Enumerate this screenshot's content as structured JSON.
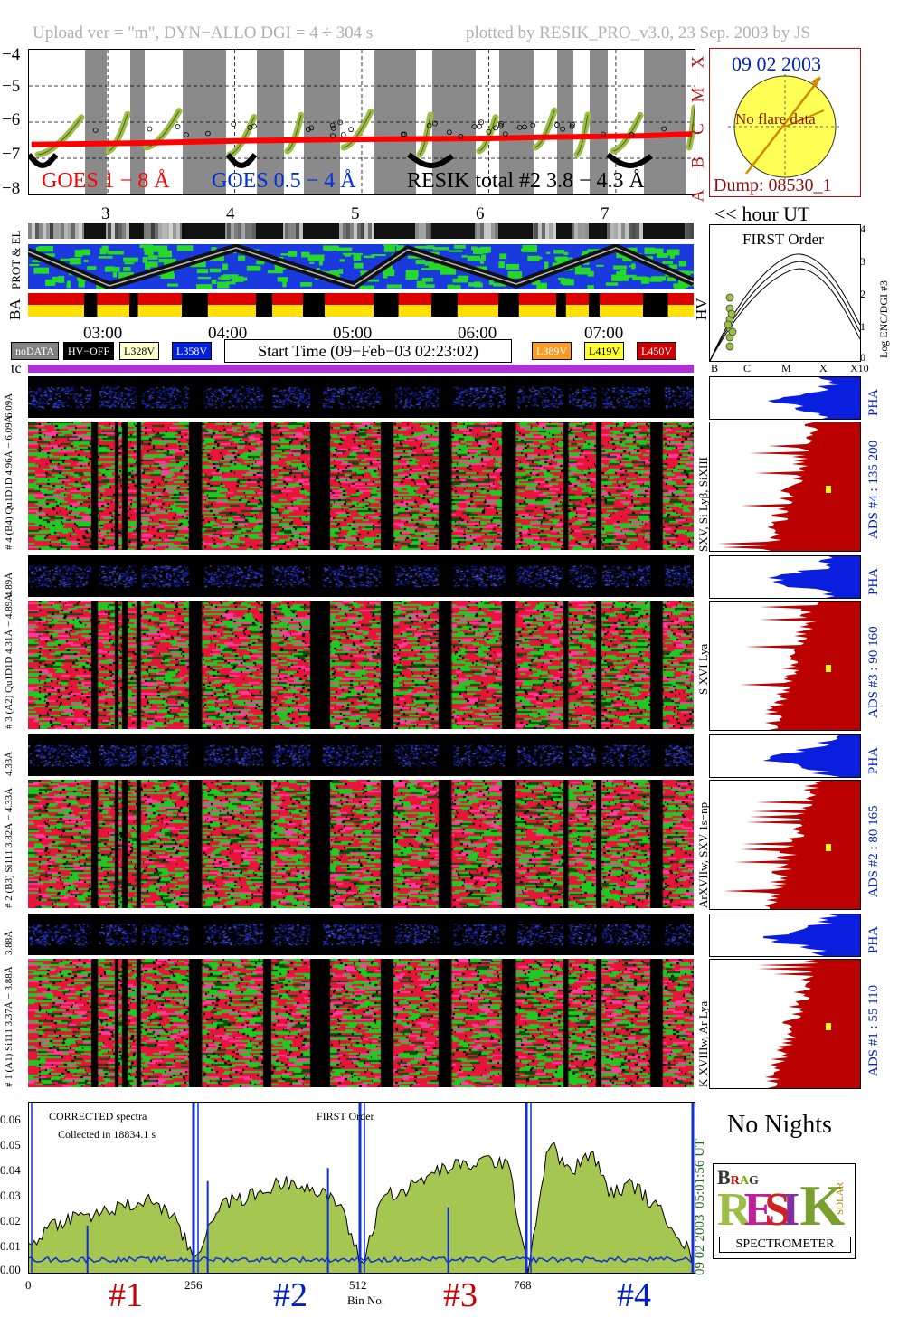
{
  "header": {
    "left": "Upload ver = \"m\", DYN−ALLO DGI =   4 ÷ 304 s",
    "right": "plotted by RESIK_PRO_v3.0, 23 Sep. 2003 by JS"
  },
  "goes_panel": {
    "y_ticks": [
      "−4",
      "−5",
      "−6",
      "−7",
      "−8"
    ],
    "class_labels": [
      "X",
      "M",
      "C",
      "B",
      "A"
    ],
    "legend_goes18": "GOES 1 − 8 Å",
    "legend_goes054": "GOES 0.5 − 4 Å",
    "legend_resik": "RESIK total #2  3.8 − 4.3 Å",
    "hour_ticks": [
      "3",
      "4",
      "5",
      "6",
      "7"
    ],
    "hour_unit": "<< hour UT"
  },
  "sun_box": {
    "date": "09 02 2003",
    "no_flare": "No flare data",
    "dump": "Dump: 08530_1"
  },
  "first_order_box": {
    "title": "FIRST Order",
    "y_label": "Log ENC/DGI #3",
    "y_ticks": [
      "4",
      "3",
      "2",
      "1",
      "0"
    ],
    "x_ticks": [
      "B",
      "C",
      "M",
      "X",
      "X10"
    ]
  },
  "strip_labels": {
    "prot_el": "PROT & EL",
    "ba": "BA",
    "hv": "HV"
  },
  "time_row": {
    "ticks": [
      "03:00",
      "04:00",
      "05:00",
      "06:00",
      "07:00"
    ],
    "start_time": "Start Time (09−Feb−03 02:23:02)",
    "tc": "tc"
  },
  "badges": [
    {
      "label": "noDATA",
      "bg": "#808080",
      "fg": "#ffffff"
    },
    {
      "label": "HV−OFF",
      "bg": "#000000",
      "fg": "#ffffff"
    },
    {
      "label": "L328V",
      "bg": "#ffffcc",
      "fg": "#000000"
    },
    {
      "label": "L358V",
      "bg": "#0020e0",
      "fg": "#ffffff"
    },
    {
      "label": "L389V",
      "bg": "#ff9a20",
      "fg": "#ffffff"
    },
    {
      "label": "L419V",
      "bg": "#ffff30",
      "fg": "#000000"
    },
    {
      "label": "L450V",
      "bg": "#cc0000",
      "fg": "#ffffff"
    }
  ],
  "channels": [
    {
      "left_pha": "6.09Å",
      "left_main": "# 4 (B4) Qu1D1D 4.96Å − 6.09Å",
      "right_line": "SXV, Si Lyβ, SiXIII",
      "ads": "ADS #4 :   135 200",
      "pha": "PHA"
    },
    {
      "left_pha": "4.89Å",
      "left_main": "# 3 (A2) Qu1D1D 4.31Å − 4.89Å",
      "right_line": "S XVI Lya",
      "ads": "ADS #3 :   90 160",
      "pha": "PHA"
    },
    {
      "left_pha": "4.33Å",
      "left_main": "# 2 (B3) Si111  3.82Å − 4.33Å",
      "right_line": "ArXVIIw, SXV 1s−np",
      "ads": "ADS #2 :   80 165",
      "pha": "PHA"
    },
    {
      "left_pha": "3.88Å",
      "left_main": "# 1 (A1) Si111  3.37Å − 3.88Å",
      "right_line": "K XVIIIw, Ar Lya",
      "ads": "ADS #1 :   55 110",
      "pha": "PHA"
    }
  ],
  "spectrum": {
    "title_left_1": "CORRECTED spectra",
    "title_left_2": "Collected in 18834.1 s",
    "title_mid": "FIRST Order",
    "y_ticks": [
      "0.06",
      "0.05",
      "0.04",
      "0.03",
      "0.02",
      "0.01",
      "0.00"
    ],
    "x_ticks": [
      "0",
      "256",
      "512",
      "768"
    ],
    "x_label": "Bin No.",
    "side_time": "05:01:56 UT",
    "side_date": "09 02 2003",
    "channel_labels": [
      {
        "label": "#1",
        "color": "#cc0000"
      },
      {
        "label": "#2",
        "color": "#0020c0"
      },
      {
        "label": "#3",
        "color": "#cc0000"
      },
      {
        "label": "#4",
        "color": "#0020c0"
      }
    ]
  },
  "no_nights": "No Nights",
  "logo": {
    "letters_big": [
      "R",
      "E",
      "S",
      "I",
      "K"
    ],
    "small_top": [
      "B",
      "R",
      "A",
      "G"
    ],
    "side": "SOLAR",
    "bottom": "SPECTROMETER"
  },
  "chart_data": [
    {
      "type": "line",
      "title": "",
      "ylabel": "",
      "xlabel": "",
      "x_unit": "hour UT",
      "xlim": [
        2.38,
        7.62
      ],
      "ylim": [
        -8,
        -4
      ],
      "series": [
        {
          "name": "GOES 1 − 8 Å",
          "color": "#ff0000",
          "x": [
            2.4,
            2.8,
            3.2,
            3.6,
            4.0,
            4.4,
            4.8,
            5.2,
            5.6,
            6.0,
            6.4,
            6.8,
            7.2,
            7.6
          ],
          "values": [
            -6.62,
            -6.6,
            -6.58,
            -6.55,
            -6.52,
            -6.5,
            -6.48,
            -6.47,
            -6.46,
            -6.45,
            -6.42,
            -6.4,
            -6.38,
            -6.33
          ]
        }
      ]
    },
    {
      "type": "area",
      "title": "",
      "xlabel": "Bin No.",
      "xlim": [
        0,
        1024
      ],
      "ylim": [
        0,
        0.065
      ],
      "series": [
        {
          "name": "",
          "color": "#000000",
          "x": [
            0,
            32,
            64,
            96,
            128,
            160,
            192,
            224,
            256,
            288,
            320,
            352,
            384,
            416,
            448,
            480,
            512,
            544,
            576,
            608,
            640,
            672,
            704,
            736,
            768,
            800,
            832,
            864,
            896,
            928,
            960,
            992,
            1024
          ],
          "values": [
            0.01,
            0.018,
            0.021,
            0.022,
            0.024,
            0.026,
            0.028,
            0.02,
            0.005,
            0.025,
            0.028,
            0.03,
            0.034,
            0.035,
            0.03,
            0.026,
            0.002,
            0.03,
            0.031,
            0.036,
            0.04,
            0.041,
            0.043,
            0.042,
            0.002,
            0.05,
            0.038,
            0.046,
            0.03,
            0.034,
            0.026,
            0.018,
            0.004
          ]
        }
      ]
    }
  ]
}
